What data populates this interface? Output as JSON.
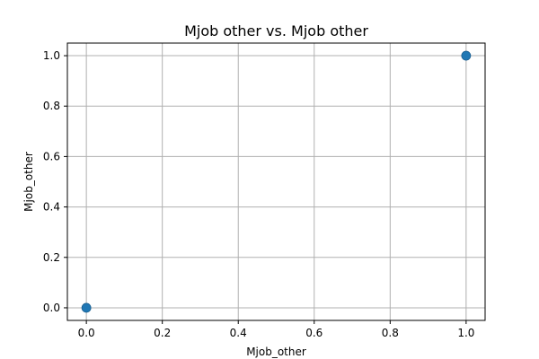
{
  "chart_data": {
    "type": "scatter",
    "title": "Mjob other vs. Mjob other",
    "xlabel": "Mjob_other",
    "ylabel": "Mjob_other",
    "x": [
      0,
      1
    ],
    "y": [
      0,
      1
    ],
    "xlim": [
      -0.05,
      1.05
    ],
    "ylim": [
      -0.05,
      1.05
    ],
    "xticks": [
      0.0,
      0.2,
      0.4,
      0.6,
      0.8,
      1.0
    ],
    "yticks": [
      0.0,
      0.2,
      0.4,
      0.6,
      0.8,
      1.0
    ],
    "xtick_labels": [
      "0.0",
      "0.2",
      "0.4",
      "0.6",
      "0.8",
      "1.0"
    ],
    "ytick_labels": [
      "0.0",
      "0.2",
      "0.4",
      "0.6",
      "0.8",
      "1.0"
    ],
    "grid": true,
    "marker_color": "#1f77b4",
    "grid_color": "#b0b0b0"
  }
}
